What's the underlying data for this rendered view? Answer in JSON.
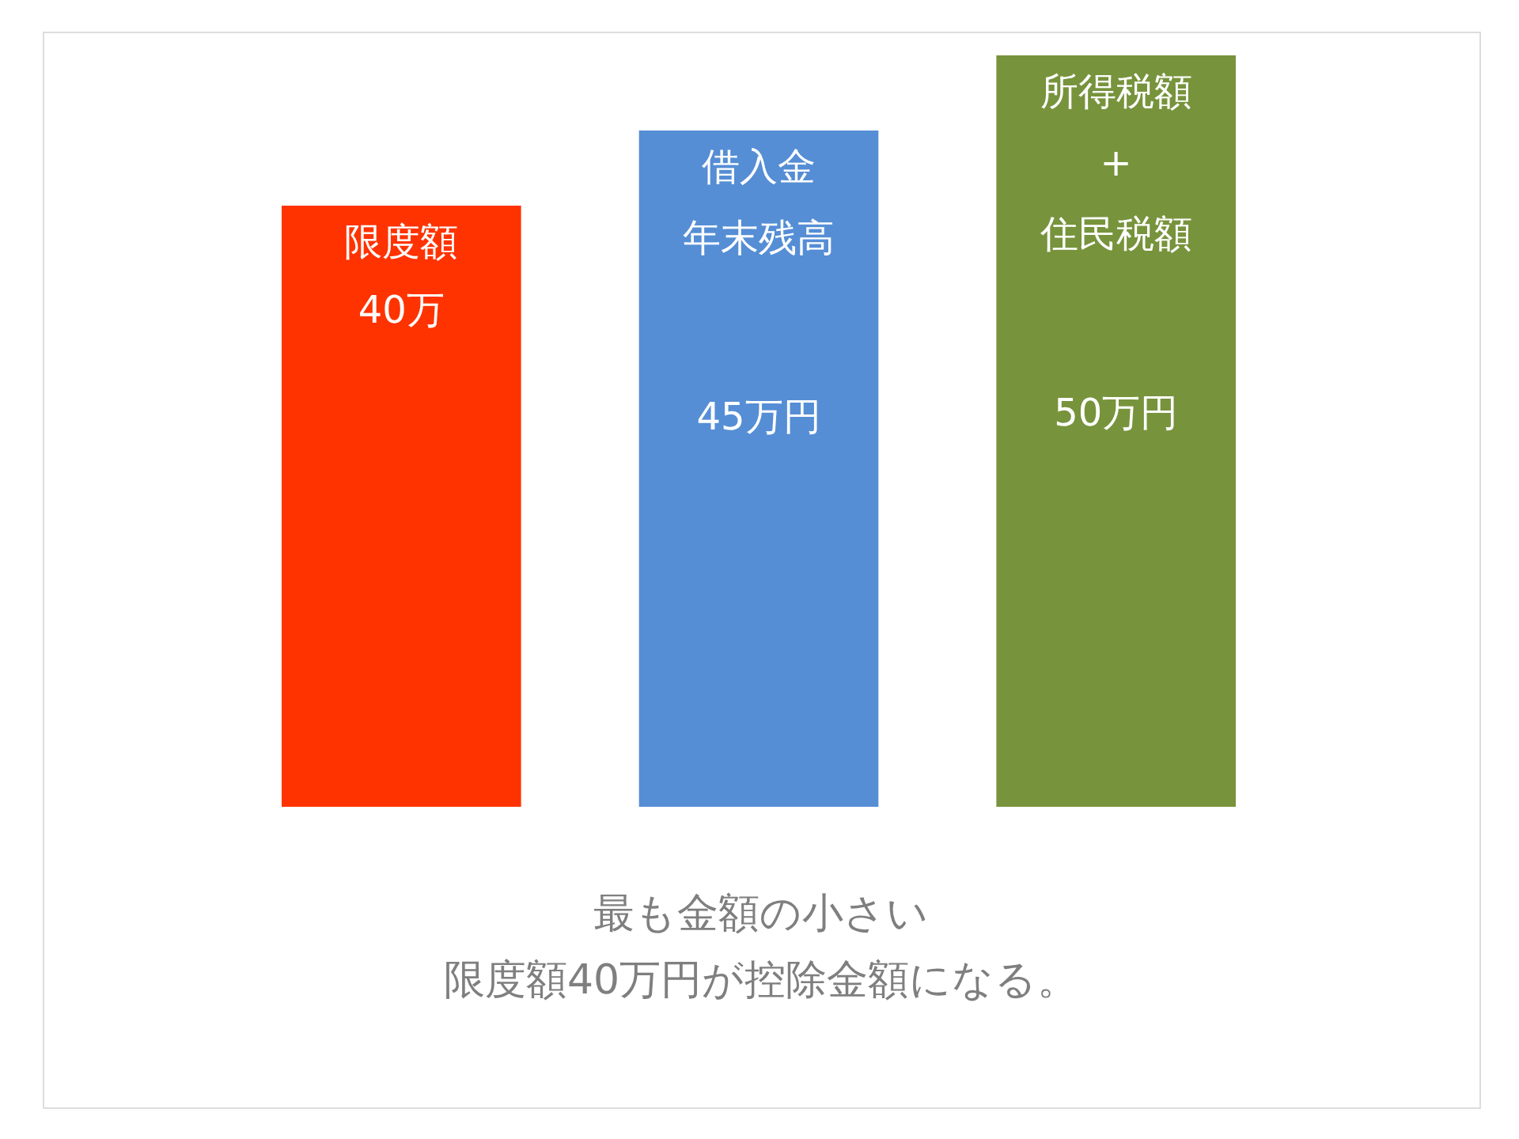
{
  "chart_data": {
    "type": "bar",
    "categories": [
      "限度額",
      "借入金年末残高",
      "所得税額+住民税額"
    ],
    "values": [
      40,
      45,
      50
    ],
    "colors": [
      "#ff3300",
      "#558ed5",
      "#77933c"
    ],
    "value_labels": [
      "40万",
      "45万円",
      "50万円"
    ],
    "annotations": [
      "最も金額の小さい",
      "限度額40万円が控除金額になる。"
    ]
  }
}
